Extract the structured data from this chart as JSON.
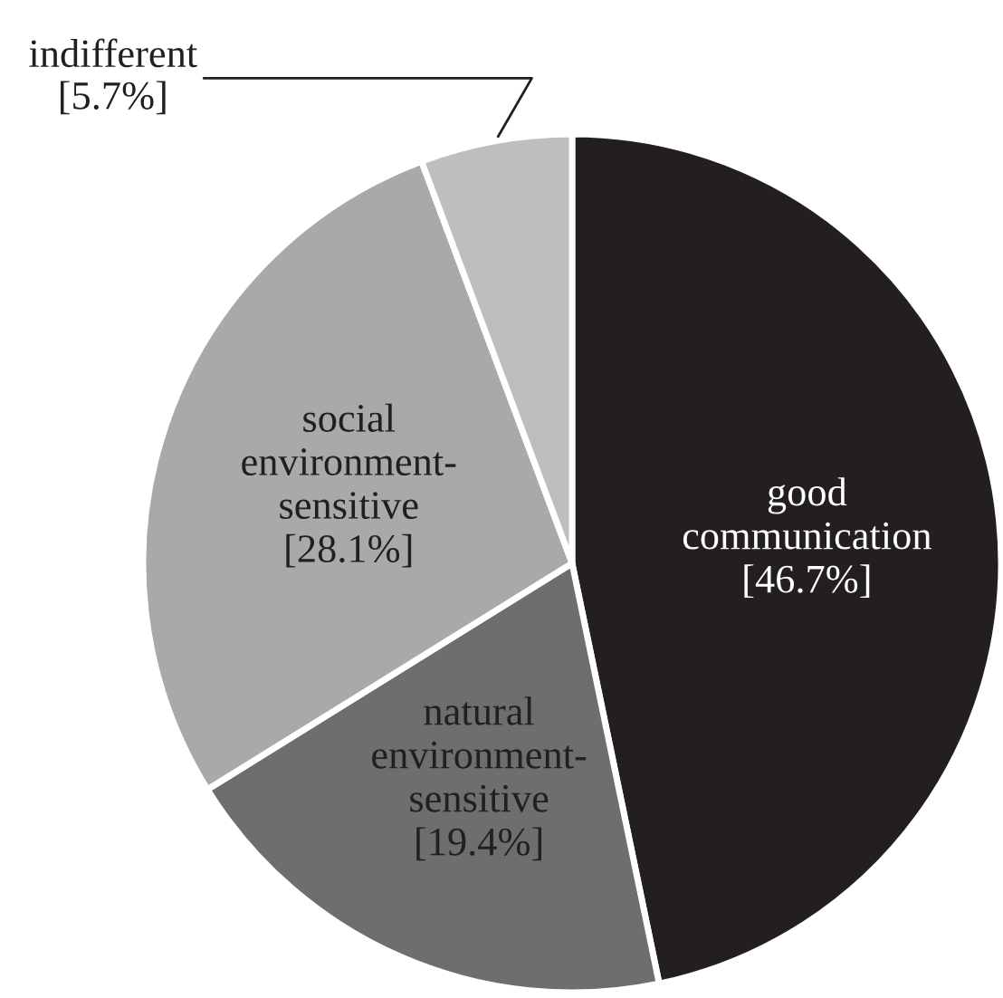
{
  "chart_data": {
    "type": "pie",
    "categories": [
      "good\ncommunication",
      "natural\nenvironment-\nsensitive",
      "social\nenvironment-\nsensitive",
      "indifferent"
    ],
    "values": [
      46.7,
      19.4,
      28.1,
      5.7
    ],
    "value_labels": [
      "[46.7%]",
      "[19.4%]",
      "[28.1%]",
      "[5.7%]"
    ],
    "colors": [
      "#231f20",
      "#6d6e70",
      "#a7a9ab",
      "#bcbec0"
    ]
  }
}
